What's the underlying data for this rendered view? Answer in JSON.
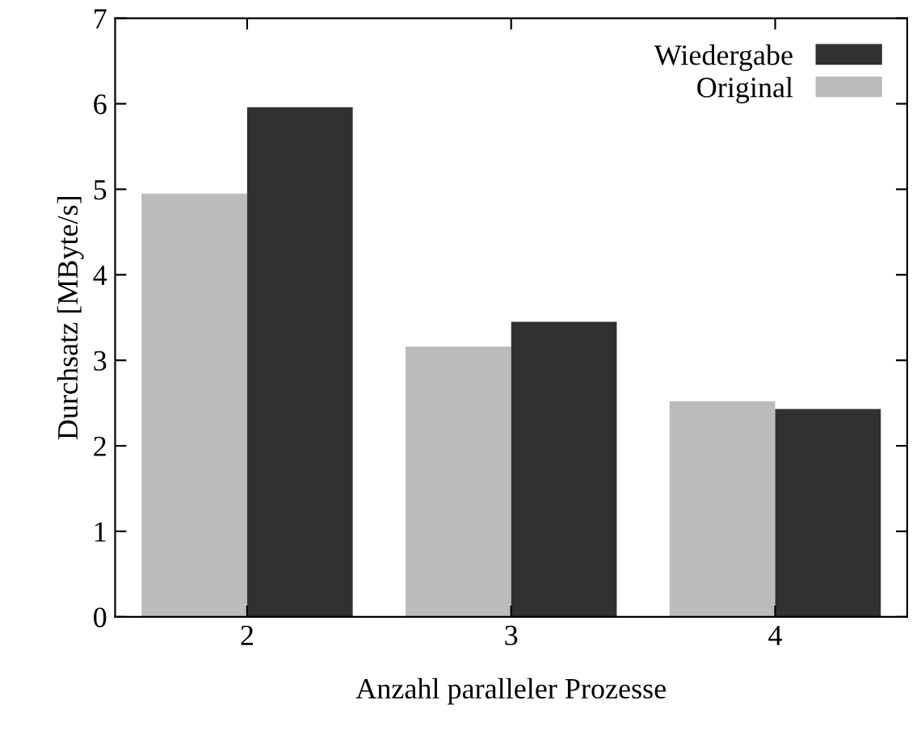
{
  "chart_data": {
    "type": "bar",
    "xlabel": "Anzahl paralleler Prozesse",
    "ylabel": "Durchsatz [MByte/s]",
    "categories": [
      "2",
      "3",
      "4"
    ],
    "series": [
      {
        "name": "Original",
        "color": "#bbbbbb",
        "values": [
          4.95,
          3.16,
          2.52
        ]
      },
      {
        "name": "Wiedergabe",
        "color": "#303131",
        "values": [
          5.96,
          3.45,
          2.43
        ]
      }
    ],
    "ylim": [
      0,
      7
    ],
    "yticks": [
      0,
      1,
      2,
      3,
      4,
      5,
      6,
      7
    ],
    "grid": false,
    "legend": "top right"
  }
}
